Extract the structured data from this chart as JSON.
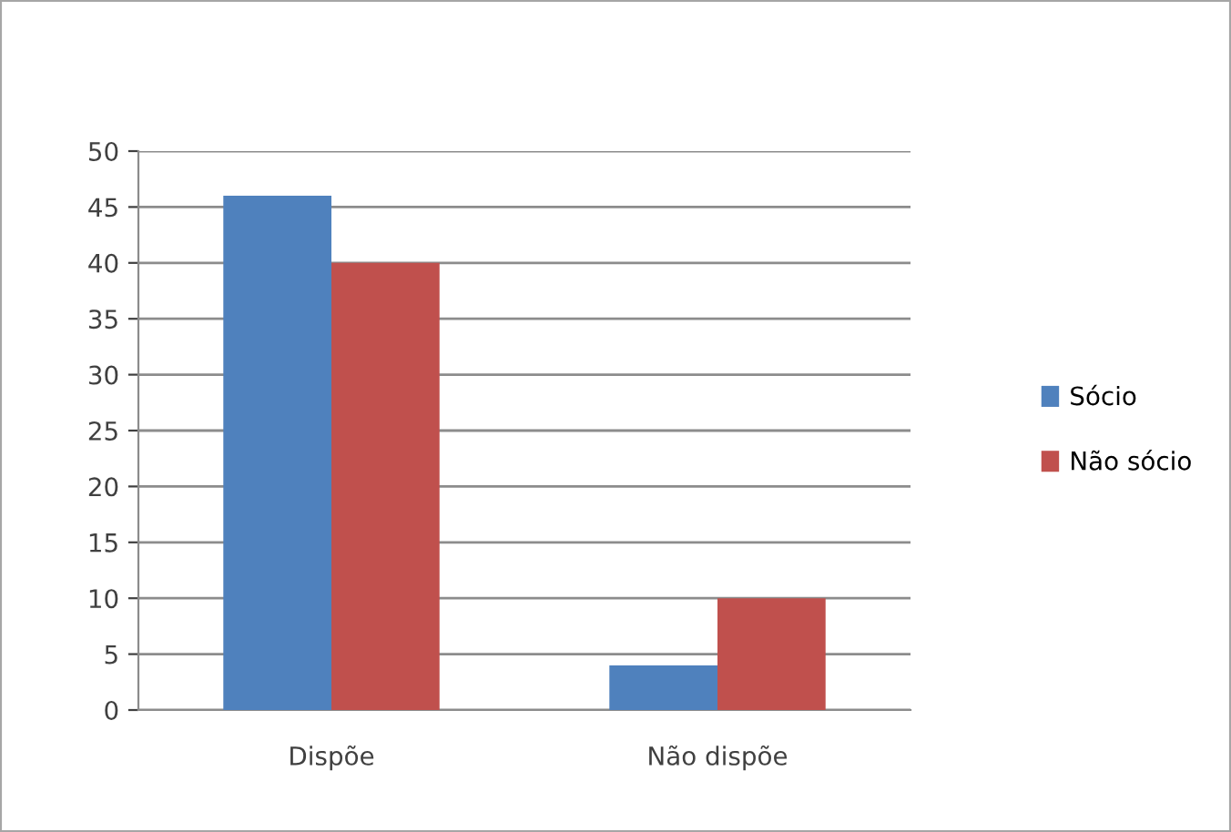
{
  "chart_data": {
    "type": "bar",
    "categories": [
      "Dispõe",
      "Não dispõe"
    ],
    "series": [
      {
        "name": "Sócio",
        "color": "#4f81bd",
        "values": [
          46,
          4
        ]
      },
      {
        "name": "Não sócio",
        "color": "#c0504d",
        "values": [
          40,
          10
        ]
      }
    ],
    "ylim": [
      0,
      50
    ],
    "yticks": [
      0,
      5,
      10,
      15,
      20,
      25,
      30,
      35,
      40,
      45,
      50
    ],
    "grid": "y",
    "legend": "right"
  }
}
